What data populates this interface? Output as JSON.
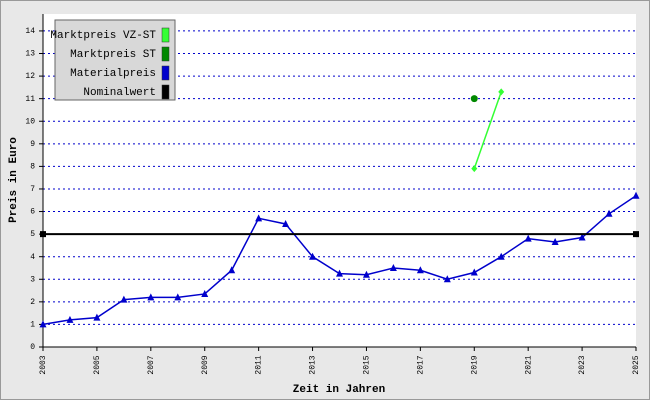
{
  "chart_data": {
    "type": "line",
    "x_label": "Zeit in Jahren",
    "y_label": "Preis in Euro",
    "xlim": [
      2003,
      2025
    ],
    "xticks": [
      2003,
      2005,
      2007,
      2009,
      2011,
      2013,
      2015,
      2017,
      2019,
      2021,
      2023,
      2025
    ],
    "ylim": [
      0,
      14.75
    ],
    "yticks": [
      0,
      1,
      2,
      3,
      4,
      5,
      6,
      7,
      8,
      9,
      10,
      11,
      12,
      13,
      14
    ],
    "grid": true,
    "legend": "upper left",
    "series": [
      {
        "name": "Marktpreis VZ-ST",
        "color": "#33ff33",
        "marker": "diamond",
        "x": [
          2019,
          2020
        ],
        "values": [
          7.9,
          11.3
        ]
      },
      {
        "name": "Marktpreis ST",
        "color": "#008800",
        "marker": "circle",
        "x": [
          2019
        ],
        "values": [
          11.0
        ]
      },
      {
        "name": "Materialpreis",
        "color": "#0000cc",
        "marker": "triangle",
        "x": [
          2003,
          2004,
          2005,
          2006,
          2007,
          2008,
          2009,
          2010,
          2011,
          2012,
          2013,
          2014,
          2015,
          2016,
          2017,
          2018,
          2019,
          2020,
          2021,
          2022,
          2023,
          2024,
          2025
        ],
        "values": [
          1.0,
          1.2,
          1.3,
          2.1,
          2.2,
          2.2,
          2.35,
          3.4,
          5.7,
          5.45,
          4.0,
          3.25,
          3.2,
          3.5,
          3.4,
          3.0,
          3.3,
          4.0,
          4.8,
          4.65,
          4.85,
          5.9,
          6.7
        ]
      },
      {
        "name": "Nominalwert",
        "color": "#000000",
        "marker": "square",
        "x": [
          2003,
          2025
        ],
        "values": [
          5,
          5
        ]
      }
    ]
  }
}
